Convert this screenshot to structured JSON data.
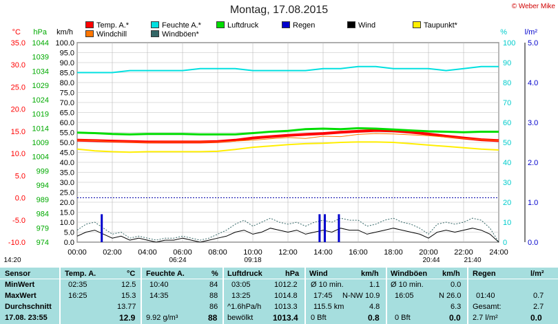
{
  "title": "Montag, 17.08.2015",
  "copyright": "© Weber Mike",
  "legend": [
    {
      "label": "Temp. A.*",
      "color": "#ff0000"
    },
    {
      "label": "Feuchte A.*",
      "color": "#00e0e0"
    },
    {
      "label": "Luftdruck",
      "color": "#00dd00"
    },
    {
      "label": "Regen",
      "color": "#0000cc"
    },
    {
      "label": "Wind",
      "color": "#000000"
    },
    {
      "label": "Taupunkt*",
      "color": "#ffee00"
    },
    {
      "label": "Windchill",
      "color": "#ff7700"
    },
    {
      "label": "Windböen*",
      "color": "#336666"
    }
  ],
  "axis_units": {
    "temp": "°C",
    "pressure": "hPa",
    "wind": "km/h",
    "humidity": "%",
    "rain": "l/m²"
  },
  "chart_data": {
    "type": "line",
    "title": "Montag, 17.08.2015",
    "x_ticks": [
      "00:00",
      "02:00",
      "04:00",
      "06:00",
      "08:00",
      "10:00",
      "12:00",
      "14:00",
      "16:00",
      "18:00",
      "20:00",
      "22:00",
      "24:00"
    ],
    "temp_ticks": [
      "35.0",
      "30.0",
      "25.0",
      "20.0",
      "15.0",
      "10.0",
      "5.0",
      "0.0",
      "-5.0",
      "-10.0"
    ],
    "pressure_ticks": [
      "1044",
      "1039",
      "1034",
      "1029",
      "1024",
      "1019",
      "1014",
      "1009",
      "1004",
      "999",
      "994",
      "989",
      "984",
      "979",
      "974"
    ],
    "wind_ticks": [
      "100.0",
      "95.0",
      "90.0",
      "85.0",
      "80.0",
      "75.0",
      "70.0",
      "65.0",
      "60.0",
      "55.0",
      "50.0",
      "45.0",
      "40.0",
      "35.0",
      "30.0",
      "25.0",
      "20.0",
      "15.0",
      "10.0",
      "5.0",
      "0.0"
    ],
    "humidity_ticks": [
      "100",
      "90",
      "80",
      "70",
      "60",
      "50",
      "40",
      "30",
      "20",
      "10",
      "0"
    ],
    "rain_ticks": [
      "5.0",
      "4.0",
      "3.0",
      "2.0",
      "1.0",
      "0.0"
    ],
    "ylim_wind": [
      0,
      100
    ],
    "ylim_temp": [
      -10,
      35
    ],
    "ylim_humidity": [
      0,
      100
    ],
    "ylim_rain": [
      0,
      5
    ],
    "series": [
      {
        "name": "Temp. A.*",
        "axis": "temp",
        "color": "#ff0000",
        "x": [
          0,
          1,
          2,
          3,
          4,
          5,
          6,
          7,
          8,
          9,
          10,
          11,
          12,
          13,
          14,
          15,
          16,
          17,
          18,
          19,
          20,
          21,
          22,
          23,
          24
        ],
        "y": [
          13.0,
          12.9,
          12.8,
          12.7,
          12.6,
          12.6,
          12.6,
          12.6,
          12.7,
          13.0,
          13.5,
          13.8,
          14.1,
          14.3,
          14.5,
          14.8,
          15.0,
          15.2,
          15.1,
          14.8,
          14.4,
          13.9,
          13.5,
          13.1,
          12.9
        ]
      },
      {
        "name": "Feuchte A.*",
        "axis": "humidity",
        "color": "#00e0e0",
        "x": [
          0,
          1,
          2,
          3,
          4,
          5,
          6,
          7,
          8,
          9,
          10,
          11,
          12,
          13,
          14,
          15,
          16,
          17,
          18,
          19,
          20,
          21,
          22,
          23,
          24
        ],
        "y": [
          85,
          85,
          85,
          86,
          86,
          86,
          86,
          87,
          87,
          87,
          86,
          86,
          86,
          86,
          87,
          87,
          88,
          88,
          87,
          87,
          87,
          86,
          87,
          88,
          88
        ]
      },
      {
        "name": "Luftdruck",
        "axis": "temp",
        "color": "#00dd00",
        "x": [
          0,
          1,
          2,
          3,
          4,
          5,
          6,
          7,
          8,
          9,
          10,
          11,
          12,
          13,
          14,
          15,
          16,
          17,
          18,
          19,
          20,
          21,
          22,
          23,
          24
        ],
        "y": [
          14.7,
          14.6,
          14.4,
          14.3,
          14.4,
          14.4,
          14.4,
          14.3,
          14.3,
          14.3,
          14.6,
          14.9,
          15.1,
          15.5,
          15.6,
          15.5,
          15.7,
          15.6,
          15.4,
          15.2,
          15.0,
          14.9,
          14.8,
          14.9,
          14.9
        ]
      },
      {
        "name": "Taupunkt*",
        "axis": "temp",
        "color": "#ffee00",
        "x": [
          0,
          1,
          2,
          3,
          4,
          5,
          6,
          7,
          8,
          9,
          10,
          11,
          12,
          13,
          14,
          15,
          16,
          17,
          18,
          19,
          20,
          21,
          22,
          23,
          24
        ],
        "y": [
          11.0,
          10.6,
          10.4,
          10.3,
          10.4,
          10.4,
          10.4,
          10.4,
          10.5,
          10.9,
          11.4,
          11.7,
          12.0,
          12.2,
          12.3,
          12.5,
          12.6,
          12.6,
          12.5,
          12.2,
          11.9,
          11.6,
          11.3,
          11.0,
          10.8
        ]
      },
      {
        "name": "Windchill",
        "axis": "temp",
        "color": "#ff7700",
        "x": [
          0,
          1,
          2,
          3,
          4,
          5,
          6,
          7,
          8,
          9,
          10,
          11,
          12,
          13,
          14,
          15,
          16,
          17,
          18,
          19,
          20,
          21,
          22,
          23,
          24
        ],
        "y": [
          13.0,
          12.9,
          12.7,
          12.6,
          12.5,
          12.6,
          12.6,
          12.6,
          12.6,
          12.8,
          13.0,
          13.3,
          13.6,
          13.4,
          13.9,
          13.8,
          14.3,
          14.5,
          14.4,
          14.2,
          14.0,
          13.7,
          13.4,
          13.1,
          12.9
        ]
      },
      {
        "name": "Wind",
        "axis": "wind",
        "color": "#000000",
        "x": [
          0,
          0.5,
          1,
          1.5,
          2,
          2.5,
          3,
          3.5,
          4,
          4.5,
          5,
          5.5,
          6,
          6.5,
          7,
          7.5,
          8,
          8.5,
          9,
          9.5,
          10,
          10.5,
          11,
          11.5,
          12,
          12.5,
          13,
          13.5,
          14,
          14.5,
          15,
          15.5,
          16,
          16.5,
          17,
          17.5,
          18,
          18.5,
          19,
          19.5,
          20,
          20.5,
          21,
          21.5,
          22,
          22.5,
          23,
          23.5,
          24
        ],
        "y": [
          3,
          5,
          6,
          4,
          2,
          3,
          1,
          2,
          1,
          0,
          1,
          1,
          2,
          1,
          0,
          1,
          2,
          3,
          5,
          6,
          4,
          5,
          7,
          6,
          5,
          6,
          4,
          5,
          6,
          5,
          7,
          6,
          6,
          4,
          5,
          6,
          7,
          6,
          5,
          4,
          2,
          5,
          6,
          5,
          6,
          7,
          6,
          4,
          0
        ]
      },
      {
        "name": "Windböen*",
        "axis": "wind",
        "color": "#336666",
        "x": [
          0,
          0.5,
          1,
          1.5,
          2,
          2.5,
          3,
          3.5,
          4,
          4.5,
          5,
          5.5,
          6,
          6.5,
          7,
          7.5,
          8,
          8.5,
          9,
          9.5,
          10,
          10.5,
          11,
          11.5,
          12,
          12.5,
          13,
          13.5,
          14,
          14.5,
          15,
          15.5,
          16,
          16.5,
          17,
          17.5,
          18,
          18.5,
          19,
          19.5,
          20,
          20.5,
          21,
          21.5,
          22,
          22.5,
          23,
          23.5,
          24
        ],
        "y": [
          6,
          9,
          10,
          7,
          4,
          5,
          2,
          3,
          2,
          1,
          2,
          2,
          3,
          2,
          1,
          2,
          4,
          6,
          9,
          11,
          8,
          10,
          12,
          10,
          9,
          10,
          8,
          10,
          11,
          10,
          12,
          11,
          11,
          8,
          9,
          11,
          12,
          10,
          9,
          7,
          4,
          9,
          10,
          9,
          10,
          12,
          11,
          7,
          0
        ]
      },
      {
        "name": "Regen",
        "axis": "rain",
        "color": "#0000cc",
        "type": "bar",
        "x": [
          1.4,
          13.8,
          14.1,
          14.9
        ],
        "y": [
          0.7,
          0.7,
          0.7,
          0.7
        ]
      }
    ]
  },
  "markers_below": [
    {
      "label": "14:20"
    },
    {
      "label": "06:24"
    },
    {
      "label": "09:18"
    },
    {
      "label": "20:44"
    },
    {
      "label": "21:40"
    }
  ],
  "table": {
    "rows": [
      "Sensor",
      "MinWert",
      "MaxWert",
      "Durchschnitt",
      "17.08. 23:55"
    ],
    "temp": {
      "head": "Temp. A.",
      "unit": "°C",
      "min_t": "02:35",
      "min_v": "12.5",
      "max_t": "16:25",
      "max_v": "15.3",
      "avg": "13.77",
      "cur": "12.9"
    },
    "feuchte": {
      "head": "Feuchte A.",
      "unit": "%",
      "min_t": "10:40",
      "min_v": "84",
      "max_t": "14:35",
      "max_v": "88",
      "avg": "86",
      "cur_l": "9.92 g/m³",
      "cur": "88"
    },
    "druck": {
      "head": "Luftdruck",
      "unit": "hPa",
      "min_t": "03:05",
      "min_v": "1012.2",
      "max_t": "13:25",
      "max_v": "1014.8",
      "avg_l": "^1.6hPa/h",
      "avg": "1013.3",
      "cur_l": "bewölkt",
      "cur": "1013.4"
    },
    "wind": {
      "head": "Wind",
      "unit": "km/h",
      "min_t": "Ø 10 min.",
      "min_v": "1.1",
      "max_t": "17:45",
      "max_d": "N-NW",
      "max_v": "10.9",
      "avg_l": "115.5 km",
      "avg": "4.8",
      "cur_l": "0 Bft",
      "cur": "0.8"
    },
    "boeen": {
      "head": "Windböen",
      "unit": "km/h",
      "min_t": "Ø 10 min.",
      "min_v": "0.0",
      "max_t": "16:05",
      "max_d": "N",
      "max_v": "26.0",
      "avg": "6.3",
      "cur_l": "0 Bft",
      "cur": "0.0"
    },
    "regen": {
      "head": "Regen",
      "unit": "l/m²",
      "max_t": "01:40",
      "max_v": "0.7",
      "avg_l": "Gesamt:",
      "avg": "2.7",
      "cur_l": "2.7 l/m²",
      "cur": "0.0"
    }
  }
}
